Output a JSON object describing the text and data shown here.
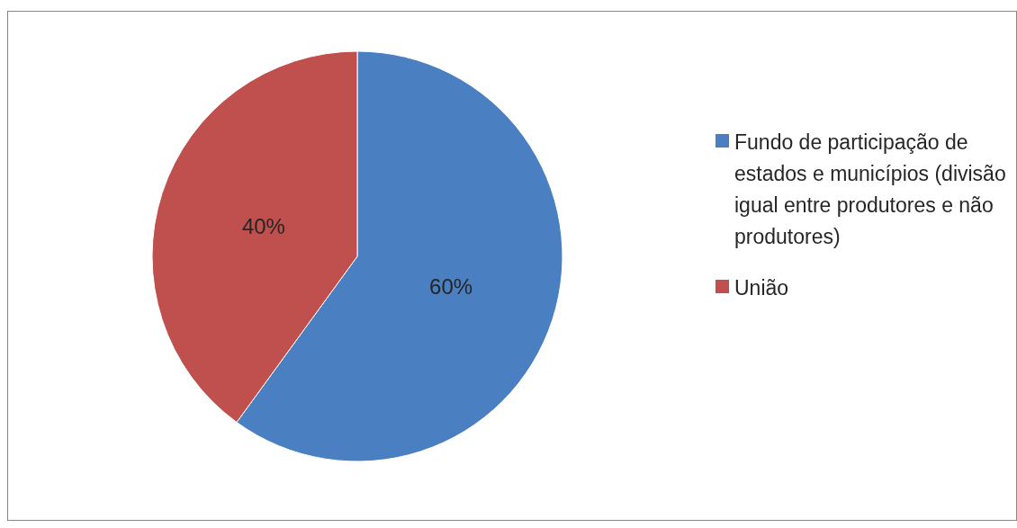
{
  "chart_data": {
    "type": "pie",
    "categories": [
      "Fundo de participação de estados e municípios (divisão igual entre produtores e não produtores)",
      "União"
    ],
    "values": [
      60,
      40
    ],
    "colors": [
      "#4a7fc1",
      "#c0504d"
    ],
    "value_labels": [
      "60%",
      "40%"
    ],
    "legend": "right"
  }
}
